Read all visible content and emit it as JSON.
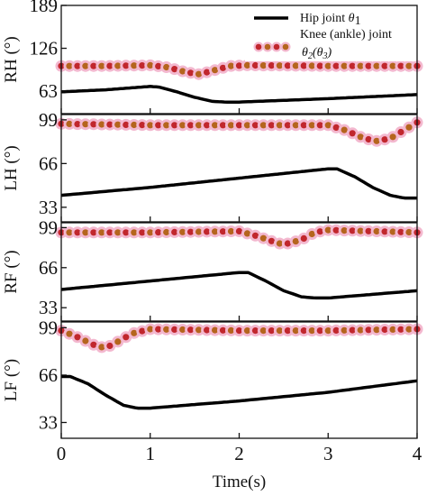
{
  "colors": {
    "hip": "#000000",
    "knee": "#c1272d",
    "knee_halo": "#f3b8cf",
    "knee_dot_core": "#b5651d"
  },
  "legend": {
    "hip_label": "Hip joint",
    "hip_symbol": "θ",
    "hip_sub": "1",
    "knee_label": "Knee (ankle) joint",
    "knee_symbol_a": "θ",
    "knee_sub_a": "2",
    "knee_symbol_b": "θ",
    "knee_sub_b": "3"
  },
  "chart_data": {
    "type": "line",
    "xlabel": "Time(s)",
    "xlim": [
      0,
      4
    ],
    "xticks": [
      0,
      1,
      2,
      3,
      4
    ],
    "panels": [
      {
        "ylabel": "RH (°)",
        "ylim": [
          30,
          189
        ],
        "yticks": [
          189,
          126,
          63
        ],
        "series": [
          {
            "name": "Hip joint θ1",
            "style": "solid",
            "x": [
              0,
              0.5,
              1.0,
              1.1,
              1.3,
              1.5,
              1.7,
              1.85,
              2.0,
              3.0,
              4.0
            ],
            "y": [
              62,
              65,
              70,
              69,
              62,
              54,
              48,
              47,
              47,
              52,
              58
            ]
          },
          {
            "name": "Knee (ankle) joint θ2(θ3)",
            "style": "dotted",
            "x": [
              0,
              0.5,
              1.0,
              1.2,
              1.4,
              1.55,
              1.7,
              1.9,
              2.1,
              3.0,
              4.0
            ],
            "y": [
              100,
              100,
              101,
              98,
              91,
              88,
              93,
              100,
              101,
              100,
              100
            ]
          }
        ]
      },
      {
        "ylabel": "LH (°)",
        "ylim": [
          22,
          103
        ],
        "yticks": [
          99,
          66,
          33
        ],
        "series": [
          {
            "name": "Hip joint θ1",
            "style": "solid",
            "x": [
              0,
              1.0,
              2.0,
              3.0,
              3.1,
              3.3,
              3.5,
              3.7,
              3.85,
              4.0
            ],
            "y": [
              42,
              48,
              55,
              62,
              62,
              56,
              48,
              42,
              40,
              40
            ]
          },
          {
            "name": "Knee (ankle) joint θ2(θ3)",
            "style": "dotted",
            "x": [
              0,
              1.0,
              2.0,
              3.0,
              3.2,
              3.4,
              3.55,
              3.7,
              3.85,
              4.0
            ],
            "y": [
              96,
              95,
              95,
              95,
              91,
              85,
              83,
              85,
              91,
              97
            ]
          }
        ]
      },
      {
        "ylabel": "RF (°)",
        "ylim": [
          22,
          103
        ],
        "yticks": [
          99,
          66,
          33
        ],
        "series": [
          {
            "name": "Hip joint θ1",
            "style": "solid",
            "x": [
              0,
              1.0,
              2.0,
              2.1,
              2.3,
              2.5,
              2.7,
              2.85,
              3.0,
              4.0
            ],
            "y": [
              48,
              55,
              62,
              62,
              55,
              47,
              42,
              41,
              41,
              47
            ]
          },
          {
            "name": "Knee (ankle) joint θ2(θ3)",
            "style": "dotted",
            "x": [
              0,
              1.0,
              2.0,
              2.2,
              2.4,
              2.5,
              2.7,
              2.85,
              3.0,
              4.0
            ],
            "y": [
              95,
              95,
              96,
              92,
              87,
              85,
              89,
              95,
              97,
              95
            ]
          }
        ]
      },
      {
        "ylabel": "LF (°)",
        "ylim": [
          22,
          103
        ],
        "yticks": [
          99,
          66,
          33
        ],
        "series": [
          {
            "name": "Hip joint θ1",
            "style": "solid",
            "x": [
              0,
              0.1,
              0.3,
              0.5,
              0.7,
              0.85,
              1.0,
              2.0,
              3.0,
              4.0
            ],
            "y": [
              65,
              65,
              60,
              52,
              45,
              43,
              43,
              48,
              54,
              62
            ]
          },
          {
            "name": "Knee (ankle) joint θ2(θ3)",
            "style": "dotted",
            "x": [
              0,
              0.2,
              0.4,
              0.5,
              0.6,
              0.8,
              1.0,
              2.0,
              3.0,
              4.0
            ],
            "y": [
              97,
              92,
              86,
              85,
              88,
              95,
              98,
              97,
              97,
              98
            ]
          }
        ]
      }
    ]
  }
}
